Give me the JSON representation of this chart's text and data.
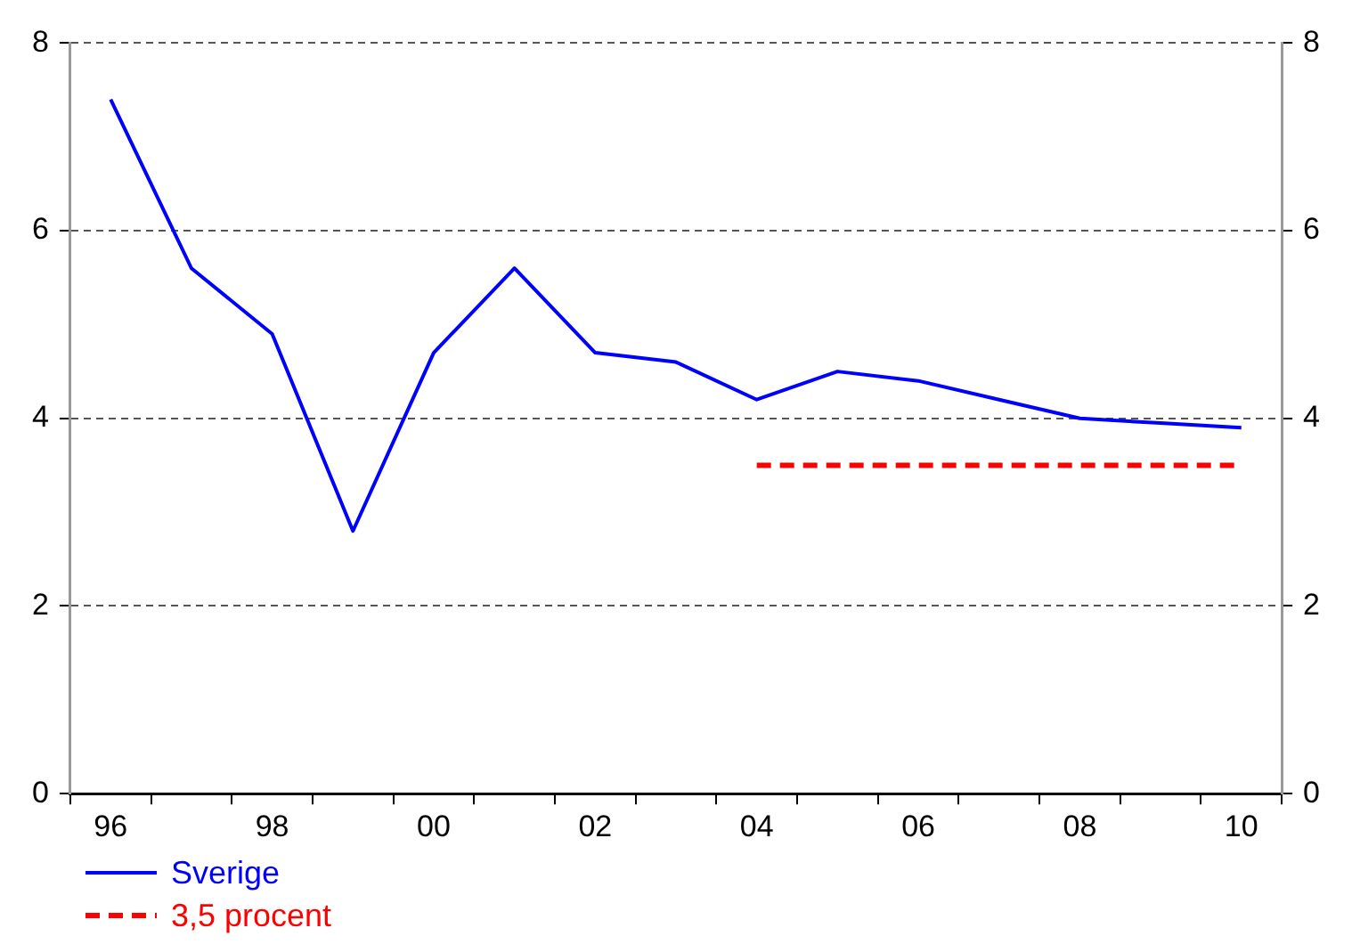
{
  "chart_data": {
    "type": "line",
    "categories": [
      "96",
      null,
      "98",
      null,
      "00",
      null,
      "02",
      null,
      "04",
      null,
      "06",
      null,
      "08",
      null,
      "10"
    ],
    "series": [
      {
        "name": "Sverige",
        "color": "#0000ff",
        "values": [
          7.4,
          5.6,
          4.9,
          2.8,
          4.7,
          5.6,
          4.7,
          4.6,
          4.2,
          4.5,
          4.4,
          4.2,
          4.0,
          3.95,
          3.9
        ]
      },
      {
        "name": "3,5 procent",
        "color": "#ff0000",
        "line_style": "dashed",
        "values": [
          null,
          null,
          null,
          null,
          null,
          null,
          null,
          null,
          3.5,
          3.5,
          3.5,
          3.5,
          3.5,
          3.5,
          3.5
        ]
      }
    ],
    "ylim": [
      0,
      8
    ],
    "yticks": [
      0,
      2,
      4,
      6,
      8
    ],
    "y2lim": [
      0,
      8
    ],
    "y2ticks": [
      0,
      2,
      4,
      6,
      8
    ],
    "grid": "y",
    "legend": "bottom left",
    "marker": "none"
  }
}
